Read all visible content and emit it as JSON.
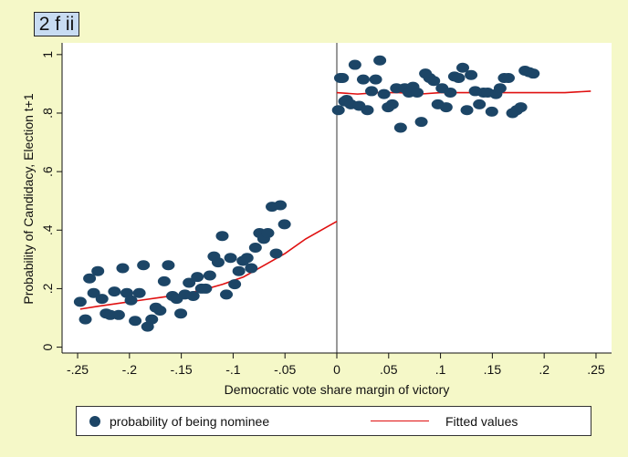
{
  "panel_label": "2 f ii",
  "chart_data": {
    "type": "scatter",
    "xlabel": "Democratic vote share margin of victory",
    "ylabel": "Probability of  Candidacy, Election t+1",
    "xlim": [
      -0.265,
      0.265
    ],
    "ylim": [
      -0.02,
      1.04
    ],
    "xticks": [
      -0.25,
      -0.2,
      -0.15,
      -0.1,
      -0.05,
      0,
      0.05,
      0.1,
      0.15,
      0.2,
      0.25
    ],
    "xtick_labels": [
      "-.25",
      "-.2",
      "-.15",
      "-.1",
      "-.05",
      "0",
      ".05",
      ".1",
      ".15",
      ".2",
      ".25"
    ],
    "yticks": [
      0,
      0.2,
      0.4,
      0.6,
      0.8,
      1
    ],
    "ytick_labels": [
      "0",
      ".2",
      ".4",
      ".6",
      ".8",
      "1"
    ],
    "grid": false,
    "cutoff": 0,
    "legend_position": "bottom",
    "series": [
      {
        "name": "probability of being nominee",
        "kind": "scatter",
        "color": "#1c4566",
        "points": [
          [
            -0.2475,
            0.155
          ],
          [
            -0.2425,
            0.095
          ],
          [
            -0.2385,
            0.235
          ],
          [
            -0.2345,
            0.185
          ],
          [
            -0.2305,
            0.26
          ],
          [
            -0.2265,
            0.165
          ],
          [
            -0.2225,
            0.115
          ],
          [
            -0.2185,
            0.11
          ],
          [
            -0.2145,
            0.19
          ],
          [
            -0.2105,
            0.11
          ],
          [
            -0.2065,
            0.27
          ],
          [
            -0.2025,
            0.185
          ],
          [
            -0.1985,
            0.16
          ],
          [
            -0.1945,
            0.09
          ],
          [
            -0.1905,
            0.185
          ],
          [
            -0.1865,
            0.28
          ],
          [
            -0.1825,
            0.07
          ],
          [
            -0.1785,
            0.095
          ],
          [
            -0.1745,
            0.135
          ],
          [
            -0.1705,
            0.125
          ],
          [
            -0.1665,
            0.225
          ],
          [
            -0.1625,
            0.28
          ],
          [
            -0.1585,
            0.175
          ],
          [
            -0.1545,
            0.165
          ],
          [
            -0.1505,
            0.115
          ],
          [
            -0.1465,
            0.18
          ],
          [
            -0.1425,
            0.22
          ],
          [
            -0.1385,
            0.175
          ],
          [
            -0.1345,
            0.24
          ],
          [
            -0.1305,
            0.2
          ],
          [
            -0.1265,
            0.2
          ],
          [
            -0.1225,
            0.245
          ],
          [
            -0.1185,
            0.31
          ],
          [
            -0.1145,
            0.29
          ],
          [
            -0.1105,
            0.38
          ],
          [
            -0.1065,
            0.18
          ],
          [
            -0.1025,
            0.305
          ],
          [
            -0.0985,
            0.215
          ],
          [
            -0.0945,
            0.26
          ],
          [
            -0.0905,
            0.295
          ],
          [
            -0.0865,
            0.305
          ],
          [
            -0.0825,
            0.27
          ],
          [
            -0.0785,
            0.34
          ],
          [
            -0.0745,
            0.39
          ],
          [
            -0.0705,
            0.37
          ],
          [
            -0.0665,
            0.39
          ],
          [
            -0.0625,
            0.48
          ],
          [
            -0.0585,
            0.32
          ],
          [
            -0.0545,
            0.485
          ],
          [
            -0.0505,
            0.42
          ],
          [
            0.0015,
            0.81
          ],
          [
            0.0035,
            0.92
          ],
          [
            0.0055,
            0.92
          ],
          [
            0.0075,
            0.84
          ],
          [
            0.0095,
            0.845
          ],
          [
            0.0135,
            0.83
          ],
          [
            0.0175,
            0.965
          ],
          [
            0.0215,
            0.825
          ],
          [
            0.0255,
            0.915
          ],
          [
            0.0295,
            0.81
          ],
          [
            0.0335,
            0.875
          ],
          [
            0.0375,
            0.915
          ],
          [
            0.0415,
            0.98
          ],
          [
            0.0455,
            0.865
          ],
          [
            0.0495,
            0.82
          ],
          [
            0.0535,
            0.83
          ],
          [
            0.0575,
            0.885
          ],
          [
            0.0615,
            0.75
          ],
          [
            0.0655,
            0.885
          ],
          [
            0.0695,
            0.87
          ],
          [
            0.0735,
            0.89
          ],
          [
            0.0775,
            0.87
          ],
          [
            0.0815,
            0.77
          ],
          [
            0.0855,
            0.935
          ],
          [
            0.0895,
            0.92
          ],
          [
            0.0935,
            0.91
          ],
          [
            0.0975,
            0.83
          ],
          [
            0.1015,
            0.885
          ],
          [
            0.1055,
            0.82
          ],
          [
            0.1095,
            0.87
          ],
          [
            0.1135,
            0.925
          ],
          [
            0.1175,
            0.92
          ],
          [
            0.1215,
            0.955
          ],
          [
            0.1255,
            0.81
          ],
          [
            0.1295,
            0.93
          ],
          [
            0.1335,
            0.875
          ],
          [
            0.1375,
            0.83
          ],
          [
            0.1415,
            0.87
          ],
          [
            0.1455,
            0.87
          ],
          [
            0.1495,
            0.805
          ],
          [
            0.1535,
            0.865
          ],
          [
            0.1575,
            0.885
          ],
          [
            0.1615,
            0.92
          ],
          [
            0.1655,
            0.92
          ],
          [
            0.1695,
            0.8
          ],
          [
            0.1735,
            0.81
          ],
          [
            0.1775,
            0.82
          ],
          [
            0.1815,
            0.945
          ],
          [
            0.1855,
            0.94
          ],
          [
            0.1895,
            0.935
          ]
        ]
      },
      {
        "name": "Fitted values",
        "kind": "line",
        "color": "#e01010",
        "segments": [
          [
            [
              -0.2475,
              0.13
            ],
            [
              -0.23,
              0.14
            ],
            [
              -0.21,
              0.15
            ],
            [
              -0.19,
              0.16
            ],
            [
              -0.17,
              0.17
            ],
            [
              -0.15,
              0.18
            ],
            [
              -0.13,
              0.195
            ],
            [
              -0.11,
              0.215
            ],
            [
              -0.09,
              0.24
            ],
            [
              -0.07,
              0.28
            ],
            [
              -0.05,
              0.32
            ],
            [
              -0.03,
              0.37
            ],
            [
              -0.01,
              0.41
            ],
            [
              0,
              0.43
            ]
          ],
          [
            [
              0,
              0.87
            ],
            [
              0.02,
              0.865
            ],
            [
              0.04,
              0.87
            ],
            [
              0.06,
              0.87
            ],
            [
              0.08,
              0.865
            ],
            [
              0.1,
              0.87
            ],
            [
              0.12,
              0.87
            ],
            [
              0.14,
              0.87
            ],
            [
              0.16,
              0.87
            ],
            [
              0.18,
              0.87
            ],
            [
              0.2,
              0.87
            ],
            [
              0.22,
              0.87
            ],
            [
              0.245,
              0.875
            ]
          ]
        ]
      }
    ]
  }
}
